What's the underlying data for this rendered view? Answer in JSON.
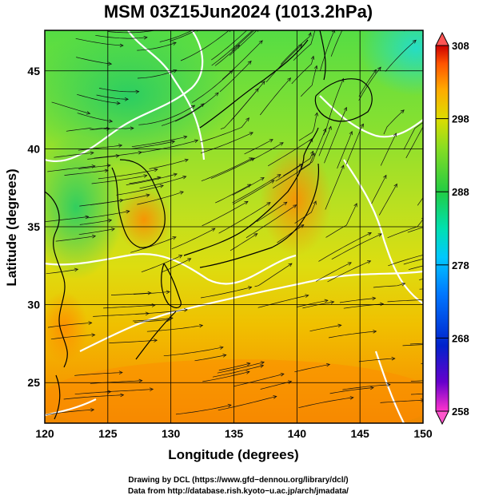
{
  "title": "MSM 03Z15Jun2024 (1013.2hPa)",
  "xlabel": "Longitude (degrees)",
  "ylabel": "Latitude  (degrees)",
  "x_ticks": [
    "120",
    "125",
    "130",
    "135",
    "140",
    "145",
    "150"
  ],
  "y_ticks": [
    "25",
    "30",
    "35",
    "40",
    "45"
  ],
  "colorbar": {
    "min": 258,
    "max": 308,
    "ticks": [
      "308",
      "298",
      "288",
      "278",
      "268",
      "258"
    ],
    "colors": [
      "#ff33cc",
      "#6600cc",
      "#0022cc",
      "#0077ff",
      "#00c8ff",
      "#00e0b0",
      "#22cc44",
      "#88dd22",
      "#dddd00",
      "#ffaa00",
      "#ff5500",
      "#cc0000"
    ]
  },
  "map": {
    "lon_range": [
      120,
      150
    ],
    "lat_range": [
      22.4,
      47.6
    ],
    "grid_lon": [
      120,
      125,
      130,
      135,
      140,
      145,
      150
    ],
    "grid_lat": [
      25,
      30,
      35,
      40,
      45
    ],
    "field": "temperature (K) with wind streamlines"
  },
  "credits": {
    "line1": "Drawing by DCL (https://www.gfd−dennou.org/library/dcl/)",
    "line2": "Data from http://database.rish.kyoto−u.ac.jp/arch/jmadata/"
  }
}
